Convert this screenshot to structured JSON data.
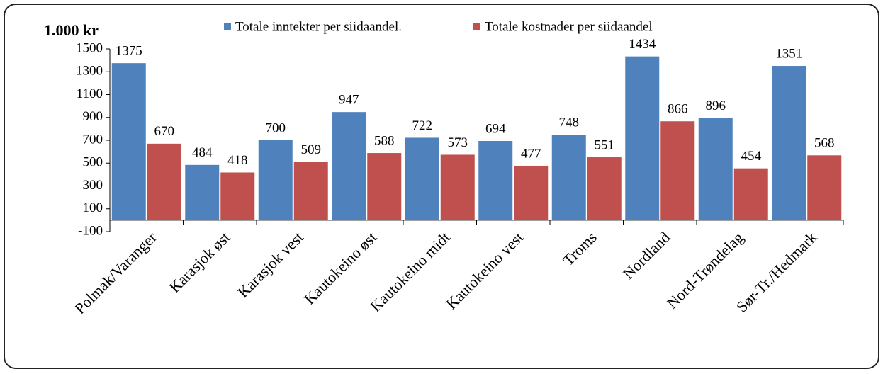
{
  "chart_data": {
    "type": "bar",
    "y_label": "1.000 kr",
    "categories": [
      "Polmak/Varanger",
      "Karasjok øst",
      "Karasjok vest",
      "Kautokeino øst",
      "Kautokeino midt",
      "Kautokeino vest",
      "Troms",
      "Nordland",
      "Nord-Trøndelag",
      "Sør-Tr./Hedmark"
    ],
    "series": [
      {
        "name": "Totale inntekter per siidaandel.",
        "color": "#4f81bd",
        "values": [
          1375,
          484,
          700,
          947,
          722,
          694,
          748,
          1434,
          896,
          1351
        ]
      },
      {
        "name": "Totale kostnader per siidaandel",
        "color": "#c0504d",
        "values": [
          670,
          418,
          509,
          588,
          573,
          477,
          551,
          866,
          454,
          568
        ]
      }
    ],
    "ylim": [
      -100,
      1500
    ],
    "yticks": [
      -100,
      100,
      300,
      500,
      700,
      900,
      1100,
      1300,
      1500
    ],
    "grid": false
  }
}
